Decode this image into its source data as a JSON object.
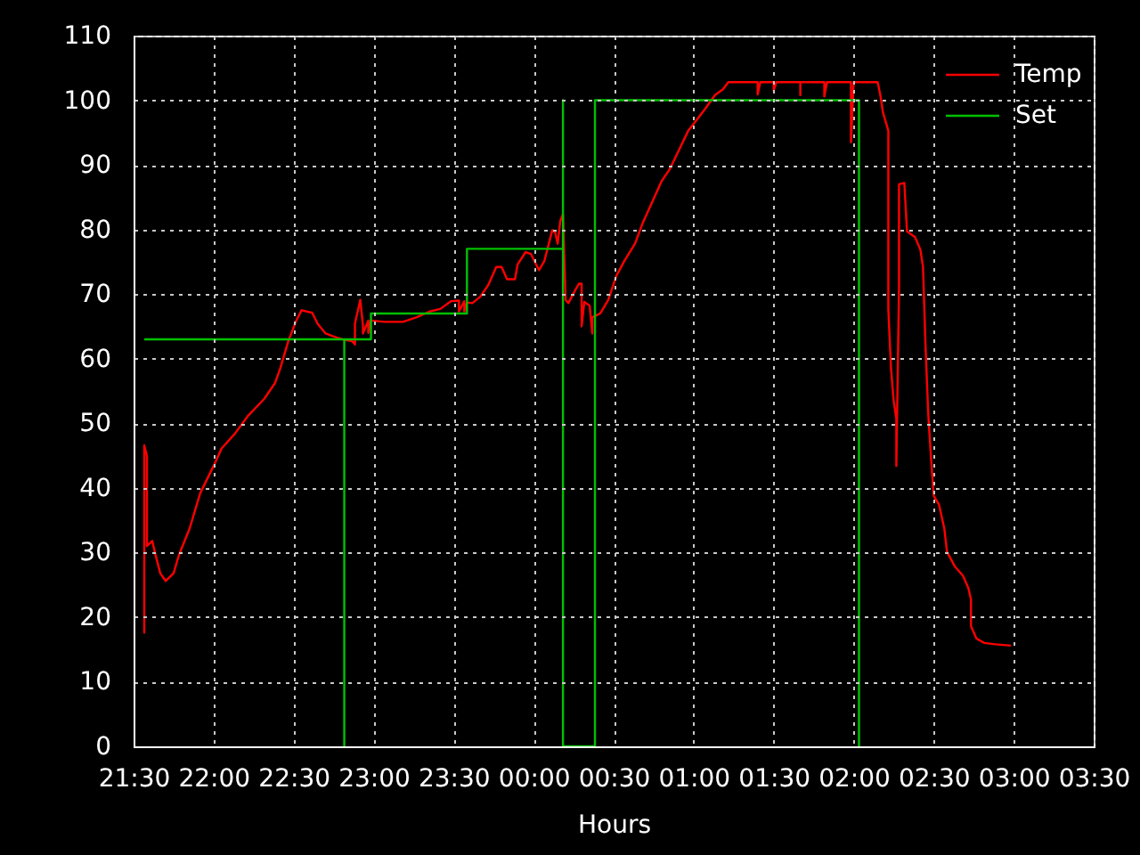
{
  "chart_data": {
    "type": "line",
    "xlabel": "Hours",
    "xlim": [
      "2000-01-01T21:30",
      "2000-01-02T03:30"
    ],
    "xticks": [
      {
        "value": "2000-01-01T21:30",
        "label": "21:30"
      },
      {
        "value": "2000-01-01T22:00",
        "label": "22:00"
      },
      {
        "value": "2000-01-01T22:30",
        "label": "22:30"
      },
      {
        "value": "2000-01-01T23:00",
        "label": "23:00"
      },
      {
        "value": "2000-01-01T23:30",
        "label": "23:30"
      },
      {
        "value": "2000-01-02T00:00",
        "label": "00:00"
      },
      {
        "value": "2000-01-02T00:30",
        "label": "00:30"
      },
      {
        "value": "2000-01-02T01:00",
        "label": "01:00"
      },
      {
        "value": "2000-01-02T01:30",
        "label": "01:30"
      },
      {
        "value": "2000-01-02T02:00",
        "label": "02:00"
      },
      {
        "value": "2000-01-02T02:30",
        "label": "02:30"
      },
      {
        "value": "2000-01-02T03:00",
        "label": "03:00"
      },
      {
        "value": "2000-01-02T03:30",
        "label": "03:30"
      }
    ],
    "ylim": [
      0,
      110
    ],
    "yticks": [
      0,
      10,
      20,
      30,
      40,
      50,
      60,
      70,
      80,
      90,
      100,
      110
    ],
    "grid": true,
    "legend": "top right",
    "series": [
      {
        "name": "Temp",
        "color": "#ff0000",
        "x": [
          "2000-01-01T21:34",
          "2000-01-01T21:34",
          "2000-01-01T21:34",
          "2000-01-01T21:35",
          "2000-01-01T21:35",
          "2000-01-01T21:37",
          "2000-01-01T21:38",
          "2000-01-01T21:40",
          "2000-01-01T21:42",
          "2000-01-01T21:45",
          "2000-01-01T21:47",
          "2000-01-01T21:51",
          "2000-01-01T21:55",
          "2000-01-01T22:00",
          "2000-01-01T22:03",
          "2000-01-01T22:08",
          "2000-01-01T22:13",
          "2000-01-01T22:19",
          "2000-01-01T22:23",
          "2000-01-01T22:25",
          "2000-01-01T22:28",
          "2000-01-01T22:31",
          "2000-01-01T22:33",
          "2000-01-01T22:37",
          "2000-01-01T22:39",
          "2000-01-01T22:42",
          "2000-01-01T22:46",
          "2000-01-01T22:49",
          "2000-01-01T22:52",
          "2000-01-01T22:53",
          "2000-01-01T22:53",
          "2000-01-01T22:55",
          "2000-01-01T22:56",
          "2000-01-01T22:56",
          "2000-01-01T22:58",
          "2000-01-01T22:58",
          "2000-01-01T22:59",
          "2000-01-01T23:04",
          "2000-01-01T23:11",
          "2000-01-01T23:16",
          "2000-01-01T23:21",
          "2000-01-01T23:25",
          "2000-01-01T23:29",
          "2000-01-01T23:32",
          "2000-01-01T23:32",
          "2000-01-01T23:34",
          "2000-01-01T23:34",
          "2000-01-01T23:35",
          "2000-01-01T23:37",
          "2000-01-01T23:40",
          "2000-01-01T23:43",
          "2000-01-01T23:46",
          "2000-01-01T23:48",
          "2000-01-01T23:50",
          "2000-01-01T23:53",
          "2000-01-01T23:54",
          "2000-01-01T23:57",
          "2000-01-01T23:59",
          "2000-01-02T00:02",
          "2000-01-02T00:04",
          "2000-01-02T00:07",
          "2000-01-02T00:08",
          "2000-01-02T00:09",
          "2000-01-02T00:10",
          "2000-01-02T00:11",
          "2000-01-02T00:12",
          "2000-01-02T00:13",
          "2000-01-02T00:16",
          "2000-01-02T00:17",
          "2000-01-02T00:18",
          "2000-01-02T00:18",
          "2000-01-02T00:19",
          "2000-01-02T00:21",
          "2000-01-02T00:22",
          "2000-01-02T00:22",
          "2000-01-02T00:25",
          "2000-01-02T00:28",
          "2000-01-02T00:31",
          "2000-01-02T00:34",
          "2000-01-02T00:38",
          "2000-01-02T00:41",
          "2000-01-02T00:44",
          "2000-01-02T00:48",
          "2000-01-02T00:51",
          "2000-01-02T00:58",
          "2000-01-02T01:04",
          "2000-01-02T01:08",
          "2000-01-02T01:11",
          "2000-01-02T01:13",
          "2000-01-02T01:24",
          "2000-01-02T01:24",
          "2000-01-02T01:25",
          "2000-01-02T01:30",
          "2000-01-02T01:30",
          "2000-01-02T01:31",
          "2000-01-02T01:40",
          "2000-01-02T01:40",
          "2000-01-02T01:40",
          "2000-01-02T01:49",
          "2000-01-02T01:49",
          "2000-01-02T01:50",
          "2000-01-02T01:59",
          "2000-01-02T01:59",
          "2000-01-02T02:00",
          "2000-01-02T02:09",
          "2000-01-02T02:10",
          "2000-01-02T02:11",
          "2000-01-02T02:13",
          "2000-01-02T02:13",
          "2000-01-02T02:14",
          "2000-01-02T02:15",
          "2000-01-02T02:16",
          "2000-01-02T02:16",
          "2000-01-02T02:17",
          "2000-01-02T02:17",
          "2000-01-02T02:19",
          "2000-01-02T02:20",
          "2000-01-02T02:23",
          "2000-01-02T02:25",
          "2000-01-02T02:26",
          "2000-01-02T02:27",
          "2000-01-02T02:28",
          "2000-01-02T02:29",
          "2000-01-02T02:30",
          "2000-01-02T02:32",
          "2000-01-02T02:34",
          "2000-01-02T02:35",
          "2000-01-02T02:38",
          "2000-01-02T02:41",
          "2000-01-02T02:43",
          "2000-01-02T02:44",
          "2000-01-02T02:44",
          "2000-01-02T02:46",
          "2000-01-02T02:49",
          "2000-01-02T02:53",
          "2000-01-02T02:59"
        ],
        "values": [
          37.4,
          17.6,
          46.6,
          44.9,
          31.0,
          31.8,
          30.0,
          26.8,
          25.6,
          26.8,
          29.6,
          33.7,
          39.2,
          43.4,
          46.1,
          48.4,
          51.2,
          53.8,
          56.2,
          58.5,
          62.7,
          65.9,
          67.5,
          67.1,
          65.4,
          63.9,
          63.3,
          62.9,
          62.7,
          62.2,
          65.4,
          69.1,
          65.2,
          63.9,
          65.9,
          64.0,
          65.9,
          65.7,
          65.7,
          66.4,
          67.3,
          67.7,
          68.9,
          69.0,
          67.3,
          68.9,
          67.3,
          68.7,
          68.6,
          69.6,
          71.4,
          74.2,
          74.2,
          72.3,
          72.3,
          74.6,
          76.5,
          76.2,
          73.7,
          75.1,
          79.9,
          79.7,
          77.8,
          81.3,
          82.4,
          69.1,
          68.6,
          70.9,
          71.6,
          71.6,
          65.0,
          68.8,
          68.2,
          63.9,
          66.4,
          67.0,
          69.1,
          72.8,
          75.1,
          77.8,
          81.1,
          83.8,
          87.5,
          89.3,
          95.3,
          98.5,
          100.8,
          101.7,
          102.8,
          102.8,
          100.9,
          102.8,
          102.8,
          101.5,
          102.8,
          102.8,
          100.8,
          102.8,
          102.8,
          100.6,
          102.8,
          102.8,
          93.5,
          102.8,
          102.8,
          100.8,
          98.1,
          95.3,
          67.7,
          58.5,
          53.5,
          50.7,
          43.4,
          70.9,
          87.0,
          87.2,
          79.7,
          78.8,
          76.9,
          74.2,
          61.3,
          51.2,
          44.7,
          38.8,
          37.4,
          33.7,
          30.1,
          27.8,
          26.4,
          24.5,
          22.7,
          18.6,
          16.7,
          16.0,
          15.8,
          15.6
        ]
      },
      {
        "name": "Set",
        "color": "#00c000",
        "x": [
          "2000-01-01T21:34",
          "2000-01-01T22:49",
          "2000-01-01T22:49",
          "2000-01-01T22:49",
          "2000-01-01T22:59",
          "2000-01-01T22:59",
          "2000-01-01T23:35",
          "2000-01-01T23:35",
          "2000-01-02T00:11",
          "2000-01-02T00:11",
          "2000-01-02T00:11",
          "2000-01-02T00:23",
          "2000-01-02T00:23",
          "2000-01-02T00:23",
          "2000-01-02T02:02",
          "2000-01-02T02:02"
        ],
        "values": [
          63,
          63,
          0,
          63,
          63,
          67,
          67,
          77,
          77,
          100,
          0,
          0,
          77,
          100,
          100,
          0
        ]
      }
    ]
  }
}
